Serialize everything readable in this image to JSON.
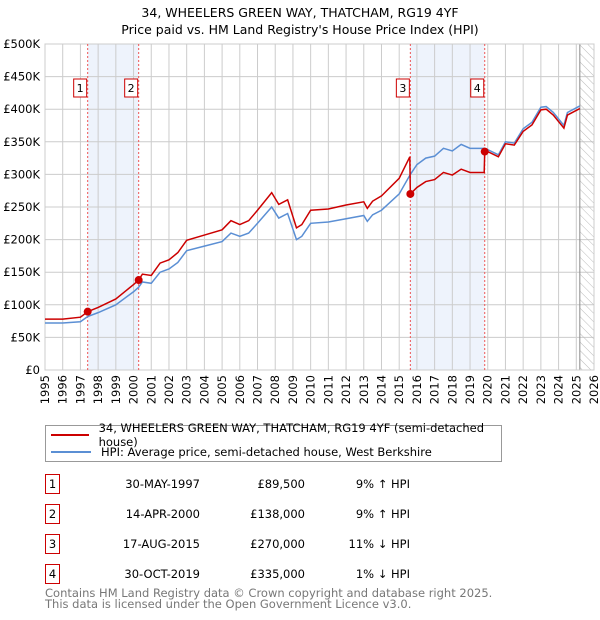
{
  "chart_data": {
    "type": "line",
    "title": "34, WHEELERS GREEN WAY, THATCHAM, RG19 4YF",
    "subtitle": "Price paid vs. HM Land Registry's House Price Index (HPI)",
    "xlim": [
      1995,
      2026
    ],
    "ylim": [
      0,
      500000
    ],
    "x_ticks": [
      "1995",
      "1996",
      "1997",
      "1998",
      "1999",
      "2000",
      "2001",
      "2002",
      "2003",
      "2004",
      "2005",
      "2006",
      "2007",
      "2008",
      "2009",
      "2010",
      "2011",
      "2012",
      "2013",
      "2014",
      "2015",
      "2016",
      "2017",
      "2018",
      "2019",
      "2020",
      "2021",
      "2022",
      "2023",
      "2024",
      "2025",
      "2026"
    ],
    "y_ticks": [
      {
        "v": 0,
        "label": "£0"
      },
      {
        "v": 50000,
        "label": "£50K"
      },
      {
        "v": 100000,
        "label": "£100K"
      },
      {
        "v": 150000,
        "label": "£150K"
      },
      {
        "v": 200000,
        "label": "£200K"
      },
      {
        "v": 250000,
        "label": "£250K"
      },
      {
        "v": 300000,
        "label": "£300K"
      },
      {
        "v": 350000,
        "label": "£350K"
      },
      {
        "v": 400000,
        "label": "£400K"
      },
      {
        "v": 450000,
        "label": "£450K"
      },
      {
        "v": 500000,
        "label": "£500K"
      }
    ],
    "grid": true,
    "shaded_ranges": [
      [
        1997.41,
        2000.29
      ],
      [
        2015.63,
        2019.83
      ]
    ],
    "hatched_from": 2025.2,
    "series": [
      {
        "name": "34, WHEELERS GREEN WAY, THATCHAM, RG19 4YF (semi-detached house)",
        "color": "#cc0000",
        "x": [
          1995,
          1996,
          1997,
          1997.41,
          1998,
          1999,
          2000,
          2000.29,
          2000.5,
          2001,
          2001.5,
          2002,
          2002.5,
          2003,
          2004,
          2005,
          2005.5,
          2006,
          2006.5,
          2007,
          2007.8,
          2008.2,
          2008.7,
          2009.2,
          2009.5,
          2010,
          2011,
          2012,
          2013,
          2013.2,
          2013.5,
          2014,
          2015,
          2015.6,
          2015.63,
          2016,
          2016.5,
          2017,
          2017.5,
          2018,
          2018.5,
          2019,
          2019.8,
          2019.83,
          2020,
          2020.6,
          2021,
          2021.5,
          2022,
          2022.5,
          2023,
          2023.3,
          2023.7,
          2024.3,
          2024.5,
          2025.2
        ],
        "y": [
          78000,
          78000,
          81000,
          89500,
          96000,
          109000,
          131000,
          138000,
          147000,
          145000,
          164000,
          169000,
          180000,
          199000,
          207000,
          215000,
          229000,
          223000,
          229000,
          245000,
          272000,
          254000,
          261000,
          218000,
          223000,
          245000,
          247000,
          253000,
          258000,
          248000,
          259000,
          267000,
          294000,
          327000,
          270000,
          280000,
          289000,
          292000,
          303000,
          299000,
          308000,
          303000,
          303000,
          335000,
          335000,
          327000,
          347000,
          345000,
          366000,
          376000,
          399000,
          400000,
          391000,
          371000,
          391000,
          401000
        ]
      },
      {
        "name": "HPI: Average price, semi-detached house, West Berkshire",
        "color": "#5b8fd4",
        "x": [
          1995,
          1996,
          1997,
          1997.41,
          1998,
          1999,
          2000,
          2000.29,
          2000.5,
          2001,
          2001.5,
          2002,
          2002.5,
          2003,
          2004,
          2005,
          2005.5,
          2006,
          2006.5,
          2007,
          2007.8,
          2008.2,
          2008.7,
          2009.2,
          2009.5,
          2010,
          2011,
          2012,
          2013,
          2013.2,
          2013.5,
          2014,
          2015,
          2015.63,
          2016,
          2016.5,
          2017,
          2017.5,
          2018,
          2018.5,
          2019,
          2019.83,
          2020,
          2020.6,
          2021,
          2021.5,
          2022,
          2022.5,
          2023,
          2023.3,
          2023.7,
          2024.3,
          2024.5,
          2025.2
        ],
        "y": [
          72000,
          72000,
          74000,
          82000,
          88000,
          100000,
          120000,
          127000,
          135000,
          133000,
          150000,
          155000,
          165000,
          183000,
          190000,
          197000,
          210000,
          205000,
          210000,
          225000,
          250000,
          233000,
          240000,
          200000,
          205000,
          225000,
          227000,
          232000,
          237000,
          228000,
          238000,
          245000,
          270000,
          300000,
          315000,
          325000,
          328000,
          340000,
          336000,
          346000,
          340000,
          340000,
          338000,
          330000,
          350000,
          348000,
          370000,
          380000,
          403000,
          404000,
          395000,
          375000,
          395000,
          405000
        ]
      }
    ],
    "sales": [
      {
        "label": "1",
        "date": "30-MAY-1997",
        "x": 1997.41,
        "price": 89500,
        "price_label": "£89,500",
        "hpi": "9% ↑ HPI"
      },
      {
        "label": "2",
        "date": "14-APR-2000",
        "x": 2000.29,
        "price": 138000,
        "price_label": "£138,000",
        "hpi": "9% ↑ HPI"
      },
      {
        "label": "3",
        "date": "17-AUG-2015",
        "x": 2015.63,
        "price": 270000,
        "price_label": "£270,000",
        "hpi": "11% ↓ HPI"
      },
      {
        "label": "4",
        "date": "30-OCT-2019",
        "x": 2019.83,
        "price": 335000,
        "price_label": "£335,000",
        "hpi": "1% ↓ HPI"
      }
    ]
  },
  "title_line1": "34, WHEELERS GREEN WAY, THATCHAM, RG19 4YF",
  "title_line2": "Price paid vs. HM Land Registry's House Price Index (HPI)",
  "legend": {
    "property": "34, WHEELERS GREEN WAY, THATCHAM, RG19 4YF (semi-detached house)",
    "hpi": "HPI: Average price, semi-detached house, West Berkshire"
  },
  "footer": {
    "line1": "Contains HM Land Registry data © Crown copyright and database right 2025.",
    "line2": "This data is licensed under the Open Government Licence v3.0."
  }
}
